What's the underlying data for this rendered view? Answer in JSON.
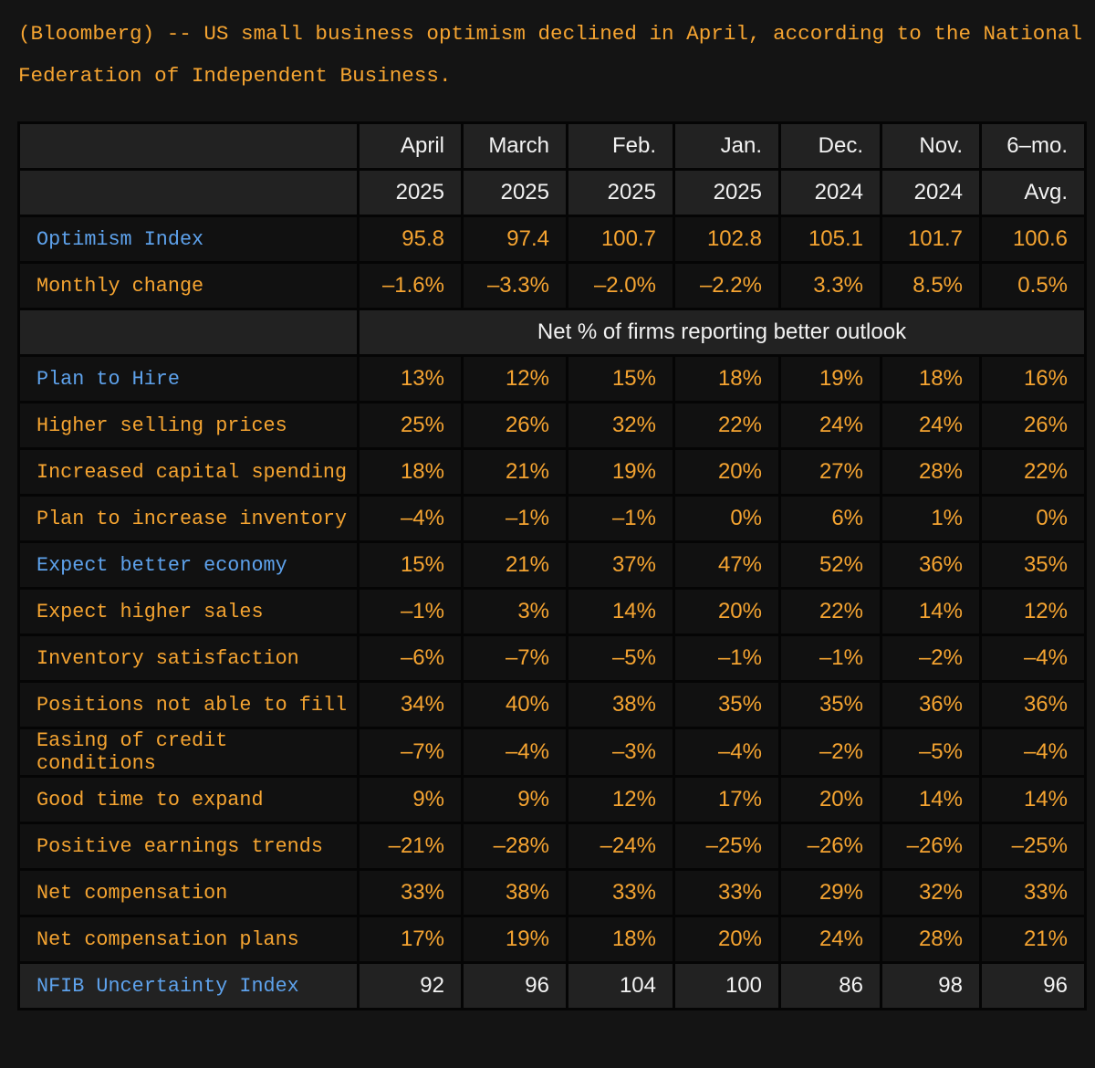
{
  "intro": "(Bloomberg) -- US small business optimism declined in April, according to the National Federation of Independent Business.",
  "columns_top": [
    "April",
    "March",
    "Feb.",
    "Jan.",
    "Dec.",
    "Nov.",
    "6–mo."
  ],
  "columns_bottom": [
    "2025",
    "2025",
    "2025",
    "2025",
    "2024",
    "2024",
    "Avg."
  ],
  "optimism": {
    "label": "Optimism Index",
    "values": [
      "95.8",
      "97.4",
      "100.7",
      "102.8",
      "105.1",
      "101.7",
      "100.6"
    ]
  },
  "monthly": {
    "label": "Monthly change",
    "values": [
      "–1.6%",
      "–3.3%",
      "–2.0%",
      "–2.2%",
      "3.3%",
      "8.5%",
      "0.5%"
    ]
  },
  "section_label": "Net % of firms reporting better outlook",
  "rows": [
    {
      "label": "Plan to Hire",
      "color": "blue",
      "values": [
        "13%",
        "12%",
        "15%",
        "18%",
        "19%",
        "18%",
        "16%"
      ]
    },
    {
      "label": "Higher selling prices",
      "color": "orange",
      "values": [
        "25%",
        "26%",
        "32%",
        "22%",
        "24%",
        "24%",
        "26%"
      ]
    },
    {
      "label": "Increased capital spending",
      "color": "orange",
      "values": [
        "18%",
        "21%",
        "19%",
        "20%",
        "27%",
        "28%",
        "22%"
      ]
    },
    {
      "label": "Plan to increase inventory",
      "color": "orange",
      "values": [
        "–4%",
        "–1%",
        "–1%",
        "0%",
        "6%",
        "1%",
        "0%"
      ]
    },
    {
      "label": "Expect better economy",
      "color": "blue",
      "values": [
        "15%",
        "21%",
        "37%",
        "47%",
        "52%",
        "36%",
        "35%"
      ]
    },
    {
      "label": "Expect higher sales",
      "color": "orange",
      "values": [
        "–1%",
        "3%",
        "14%",
        "20%",
        "22%",
        "14%",
        "12%"
      ]
    },
    {
      "label": "Inventory satisfaction",
      "color": "orange",
      "values": [
        "–6%",
        "–7%",
        "–5%",
        "–1%",
        "–1%",
        "–2%",
        "–4%"
      ]
    },
    {
      "label": "Positions not able to fill",
      "color": "orange",
      "values": [
        "34%",
        "40%",
        "38%",
        "35%",
        "35%",
        "36%",
        "36%"
      ]
    },
    {
      "label": "Easing of credit conditions",
      "color": "orange",
      "values": [
        "–7%",
        "–4%",
        "–3%",
        "–4%",
        "–2%",
        "–5%",
        "–4%"
      ]
    },
    {
      "label": "Good time to expand",
      "color": "orange",
      "values": [
        "9%",
        "9%",
        "12%",
        "17%",
        "20%",
        "14%",
        "14%"
      ]
    },
    {
      "label": "Positive earnings trends",
      "color": "orange",
      "values": [
        "–21%",
        "–28%",
        "–24%",
        "–25%",
        "–26%",
        "–26%",
        "–25%"
      ]
    },
    {
      "label": "Net compensation",
      "color": "orange",
      "values": [
        "33%",
        "38%",
        "33%",
        "33%",
        "29%",
        "32%",
        "33%"
      ]
    },
    {
      "label": "Net compensation plans",
      "color": "orange",
      "values": [
        "17%",
        "19%",
        "18%",
        "20%",
        "24%",
        "28%",
        "21%"
      ]
    }
  ],
  "uncertainty": {
    "label": "NFIB Uncertainty Index",
    "values": [
      "92",
      "96",
      "104",
      "100",
      "86",
      "98",
      "96"
    ]
  },
  "colors": {
    "orange": "#f5a431",
    "blue": "#5ea2ec",
    "white": "#f2f2f2",
    "header_bg": "#222222",
    "row_bg": "#111111"
  }
}
